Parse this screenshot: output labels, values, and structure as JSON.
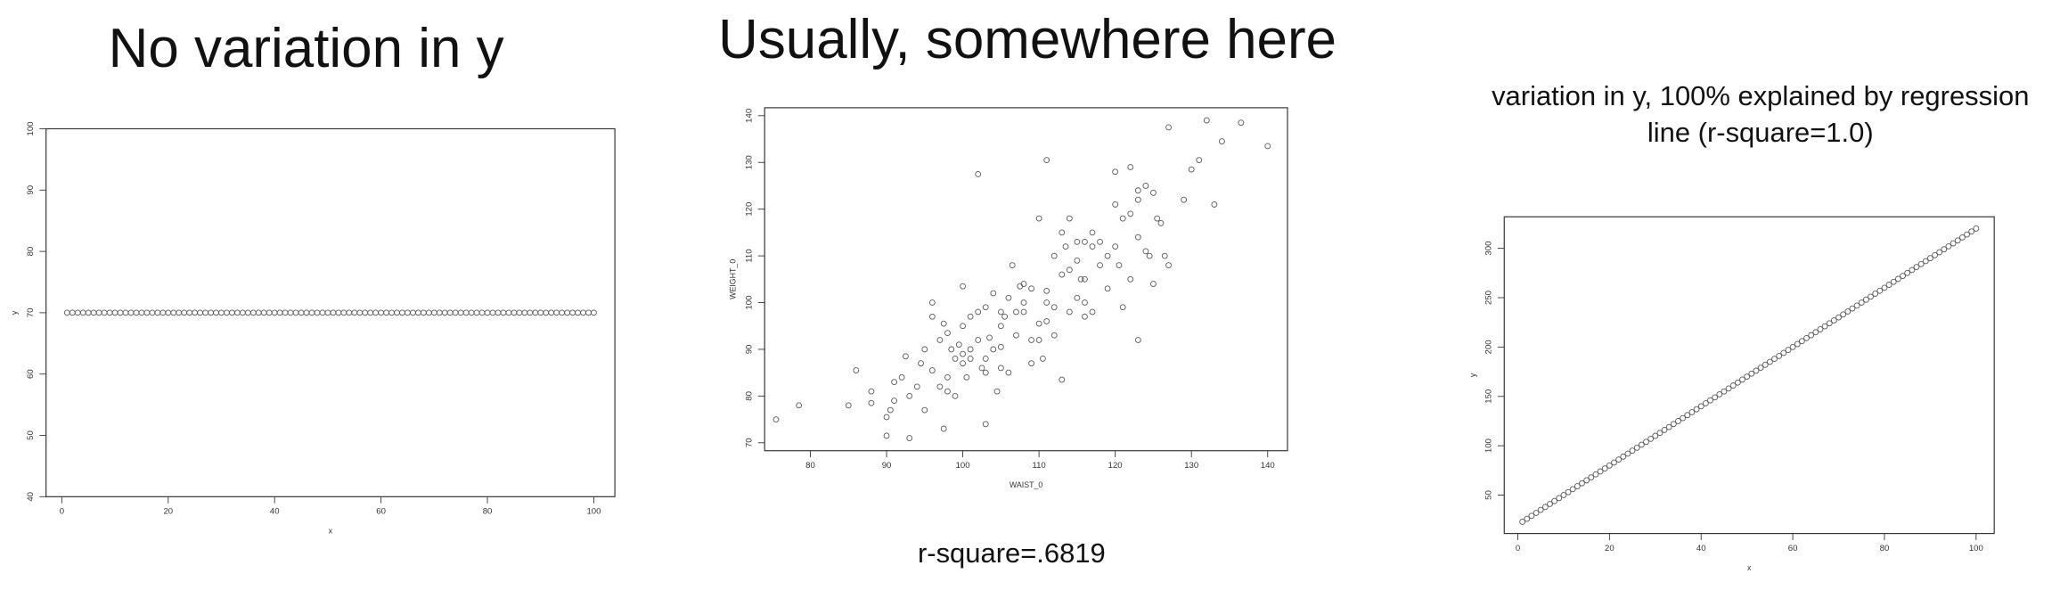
{
  "chart_data": [
    {
      "type": "scatter",
      "title": "No variation in y",
      "xlabel": "x",
      "ylabel": "y",
      "x": [
        1,
        2,
        3,
        4,
        5,
        6,
        7,
        8,
        9,
        10,
        11,
        12,
        13,
        14,
        15,
        16,
        17,
        18,
        19,
        20,
        21,
        22,
        23,
        24,
        25,
        26,
        27,
        28,
        29,
        30,
        31,
        32,
        33,
        34,
        35,
        36,
        37,
        38,
        39,
        40,
        41,
        42,
        43,
        44,
        45,
        46,
        47,
        48,
        49,
        50,
        51,
        52,
        53,
        54,
        55,
        56,
        57,
        58,
        59,
        60,
        61,
        62,
        63,
        64,
        65,
        66,
        67,
        68,
        69,
        70,
        71,
        72,
        73,
        74,
        75,
        76,
        77,
        78,
        79,
        80,
        81,
        82,
        83,
        84,
        85,
        86,
        87,
        88,
        89,
        90,
        91,
        92,
        93,
        94,
        95,
        96,
        97,
        98,
        99,
        100
      ],
      "y": [
        70,
        70,
        70,
        70,
        70,
        70,
        70,
        70,
        70,
        70,
        70,
        70,
        70,
        70,
        70,
        70,
        70,
        70,
        70,
        70,
        70,
        70,
        70,
        70,
        70,
        70,
        70,
        70,
        70,
        70,
        70,
        70,
        70,
        70,
        70,
        70,
        70,
        70,
        70,
        70,
        70,
        70,
        70,
        70,
        70,
        70,
        70,
        70,
        70,
        70,
        70,
        70,
        70,
        70,
        70,
        70,
        70,
        70,
        70,
        70,
        70,
        70,
        70,
        70,
        70,
        70,
        70,
        70,
        70,
        70,
        70,
        70,
        70,
        70,
        70,
        70,
        70,
        70,
        70,
        70,
        70,
        70,
        70,
        70,
        70,
        70,
        70,
        70,
        70,
        70,
        70,
        70,
        70,
        70,
        70,
        70,
        70,
        70,
        70,
        70
      ],
      "xlim": [
        -2.96,
        103.96
      ],
      "ylim": [
        40,
        100
      ],
      "xticks": [
        0,
        20,
        40,
        60,
        80,
        100
      ],
      "yticks": [
        40,
        50,
        60,
        70,
        80,
        90,
        100
      ],
      "color": "#555555"
    },
    {
      "type": "scatter",
      "title": "Usually, somewhere here",
      "annotation": "r-square=.6819",
      "xlabel": "WAIST_0",
      "ylabel": "WEIGHT_0",
      "x": [
        75.5,
        78.5,
        85,
        86,
        88,
        88,
        90,
        90,
        90.5,
        91,
        91,
        92,
        92.5,
        93,
        93,
        94,
        94.5,
        95,
        95,
        96,
        96,
        96,
        97,
        97,
        97.5,
        97.5,
        98,
        98,
        98,
        98.5,
        99,
        99,
        99.5,
        100,
        100,
        100,
        100,
        100.5,
        101,
        101,
        101,
        102,
        102,
        102,
        102.5,
        103,
        103,
        103,
        103,
        103.5,
        104,
        104,
        104.5,
        105,
        105,
        105,
        105,
        105.5,
        106,
        106,
        106.5,
        107,
        107,
        107.5,
        108,
        108,
        108,
        109,
        109,
        109,
        110,
        110,
        110,
        110.5,
        111,
        111,
        111,
        111,
        112,
        112,
        112,
        113,
        113,
        113,
        113.5,
        114,
        114,
        114,
        115,
        115,
        115,
        115.5,
        116,
        116,
        116,
        116,
        117,
        117,
        117,
        118,
        118,
        119,
        119,
        120,
        120,
        120,
        120.5,
        121,
        121,
        122,
        122,
        122,
        123,
        123,
        123,
        123,
        124,
        124,
        124.5,
        125,
        125,
        125.5,
        126,
        126.5,
        127,
        127,
        129,
        130,
        131,
        132,
        133,
        134,
        136.5,
        140
      ],
      "y": [
        75,
        78,
        78,
        85.5,
        81,
        78.5,
        71.5,
        75.5,
        77,
        79,
        83,
        84,
        88.5,
        71,
        80,
        82,
        87,
        90,
        77,
        97,
        100,
        85.5,
        82,
        92,
        73,
        95.5,
        81,
        84,
        93.5,
        90,
        88,
        80,
        91,
        87,
        89,
        95,
        103.5,
        84,
        90,
        97,
        88,
        92,
        98,
        127.5,
        86,
        74,
        85,
        99,
        88,
        92.5,
        102,
        90,
        81,
        86,
        90.5,
        95,
        98,
        97,
        101,
        85,
        108,
        93,
        98,
        103.5,
        104,
        100,
        98,
        92,
        103,
        87,
        118,
        92,
        95.5,
        88,
        130.5,
        102.5,
        96,
        100,
        110,
        99,
        93,
        115,
        106,
        83.5,
        112,
        107,
        118,
        98,
        113,
        109,
        101,
        105,
        113,
        97,
        100,
        105,
        115,
        112,
        98,
        108,
        113,
        110,
        103,
        128,
        121,
        112,
        108,
        118,
        99,
        129,
        119,
        105,
        124,
        122,
        92,
        114,
        125,
        111,
        110,
        123.5,
        104,
        118,
        117,
        110,
        137.5,
        108,
        122,
        128.5,
        130.5,
        139,
        121,
        134.5,
        138.5,
        133.5
      ],
      "xlim": [
        74,
        142.6
      ],
      "ylim": [
        68.3,
        141.7
      ],
      "xticks": [
        80,
        90,
        100,
        110,
        120,
        130,
        140
      ],
      "yticks": [
        70,
        80,
        90,
        100,
        110,
        120,
        130,
        140
      ],
      "color": "#555555"
    },
    {
      "type": "scatter",
      "title": [
        "variation in y, 100% explained by regression",
        "line (r-square=1.0)"
      ],
      "xlabel": "x",
      "ylabel": "y",
      "x": [
        1,
        2,
        3,
        4,
        5,
        6,
        7,
        8,
        9,
        10,
        11,
        12,
        13,
        14,
        15,
        16,
        17,
        18,
        19,
        20,
        21,
        22,
        23,
        24,
        25,
        26,
        27,
        28,
        29,
        30,
        31,
        32,
        33,
        34,
        35,
        36,
        37,
        38,
        39,
        40,
        41,
        42,
        43,
        44,
        45,
        46,
        47,
        48,
        49,
        50,
        51,
        52,
        53,
        54,
        55,
        56,
        57,
        58,
        59,
        60,
        61,
        62,
        63,
        64,
        65,
        66,
        67,
        68,
        69,
        70,
        71,
        72,
        73,
        74,
        75,
        76,
        77,
        78,
        79,
        80,
        81,
        82,
        83,
        84,
        85,
        86,
        87,
        88,
        89,
        90,
        91,
        92,
        93,
        94,
        95,
        96,
        97,
        98,
        99,
        100
      ],
      "y": [
        23,
        26,
        29,
        32,
        35,
        38,
        41,
        44,
        47,
        50,
        53,
        56,
        59,
        62,
        65,
        68,
        71,
        74,
        77,
        80,
        83,
        86,
        89,
        92,
        95,
        98,
        101,
        104,
        107,
        110,
        113,
        116,
        119,
        122,
        125,
        128,
        131,
        134,
        137,
        140,
        143,
        146,
        149,
        152,
        155,
        158,
        161,
        164,
        167,
        170,
        173,
        176,
        179,
        182,
        185,
        188,
        191,
        194,
        197,
        200,
        203,
        206,
        209,
        212,
        215,
        218,
        221,
        224,
        227,
        230,
        233,
        236,
        239,
        242,
        245,
        248,
        251,
        254,
        257,
        260,
        263,
        266,
        269,
        272,
        275,
        278,
        281,
        284,
        287,
        290,
        293,
        296,
        299,
        302,
        305,
        308,
        311,
        314,
        317,
        320
      ],
      "xlim": [
        -2.96,
        103.96
      ],
      "ylim": [
        11.12,
        331.88
      ],
      "xticks": [
        0,
        20,
        40,
        60,
        80,
        100
      ],
      "yticks": [
        50,
        100,
        150,
        200,
        250,
        300
      ],
      "color": "#555555"
    }
  ]
}
